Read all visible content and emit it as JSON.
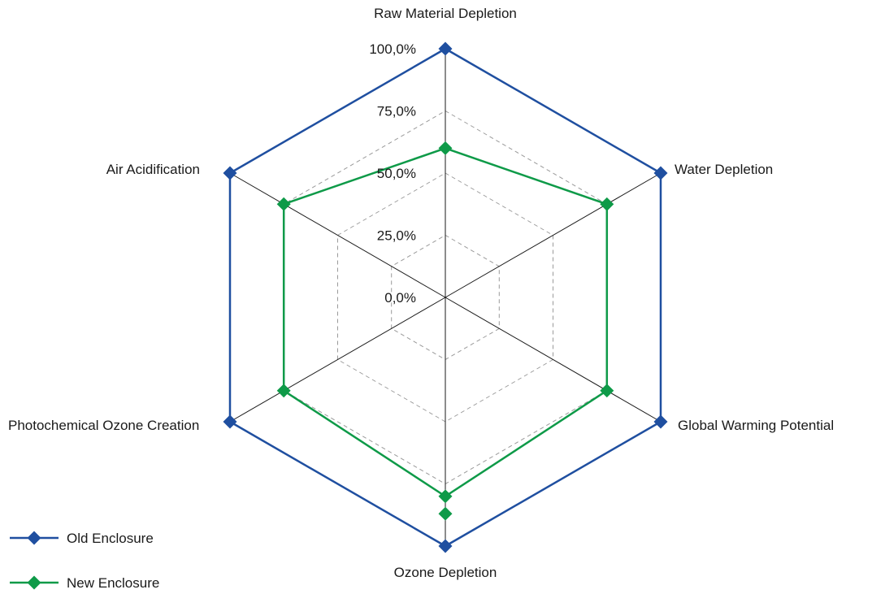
{
  "chart_data": {
    "type": "radar",
    "title": "",
    "categories": [
      "Raw Material Depletion",
      "Water Depletion",
      "Global Warming Potential",
      "Ozone Depletion",
      "Photochemical Ozone Creation",
      "Air Acidification"
    ],
    "radial_ticks": [
      "0,0%",
      "25,0%",
      "50,0%",
      "75,0%",
      "100,0%"
    ],
    "rlim": [
      0,
      1
    ],
    "grid": true,
    "legend": "bottom-left",
    "series": [
      {
        "name": "Old Enclosure",
        "color": "#1f4fa0",
        "values": [
          1.0,
          1.0,
          1.0,
          1.0,
          1.0,
          1.0
        ]
      },
      {
        "name": "New Enclosure",
        "color": "#0e9a48",
        "values": [
          0.6,
          0.75,
          0.75,
          0.8,
          0.75,
          0.75
        ],
        "extra_markers": [
          {
            "category": "Ozone Depletion",
            "value": 0.87
          }
        ]
      }
    ]
  }
}
